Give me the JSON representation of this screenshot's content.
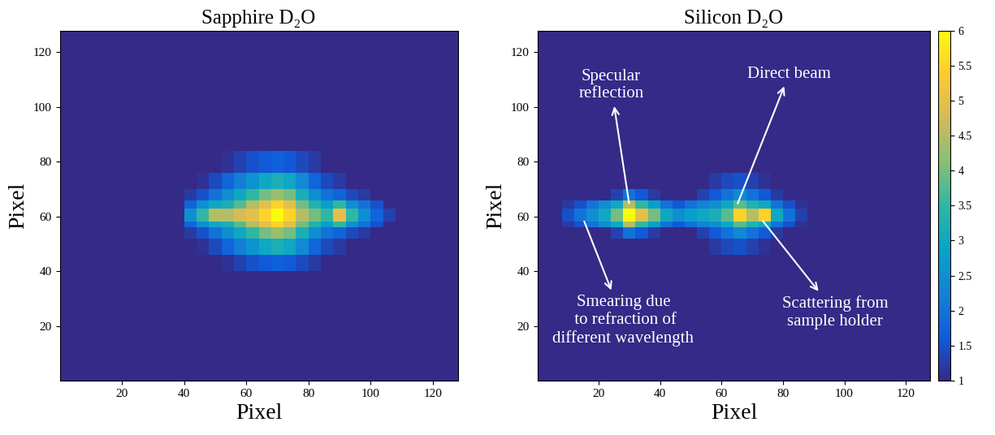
{
  "chart_data": [
    {
      "type": "heatmap",
      "title": "Sapphire D₂O",
      "x_label": "Pixel",
      "y_label": "Pixel",
      "xlim": [
        0,
        128
      ],
      "ylim": [
        0,
        128
      ],
      "xticks": [
        20,
        40,
        60,
        80,
        100,
        120
      ],
      "yticks": [
        20,
        40,
        60,
        80,
        100,
        120
      ],
      "x_edges": [
        0,
        4,
        8,
        12,
        16,
        20,
        24,
        28,
        32,
        36,
        40,
        44,
        48,
        52,
        56,
        60,
        64,
        68,
        72,
        76,
        80,
        84,
        88,
        92,
        96,
        100,
        104,
        108,
        112,
        116,
        120,
        124,
        128
      ],
      "y_edges": [
        0,
        40,
        46,
        52,
        56,
        58,
        63,
        66,
        70,
        76,
        84,
        128
      ],
      "color_range": [
        1,
        6
      ],
      "cells": [
        [
          1,
          1,
          1,
          1,
          1,
          1,
          1,
          1,
          1,
          1,
          1,
          1,
          1,
          1,
          1,
          1,
          1,
          1,
          1,
          1,
          1,
          1,
          1,
          1,
          1,
          1,
          1,
          1,
          1,
          1,
          1,
          1
        ],
        [
          1,
          1,
          1,
          1,
          1,
          1,
          1,
          1,
          1,
          1,
          1,
          1,
          1,
          1.1,
          1.3,
          1.5,
          1.6,
          1.7,
          1.6,
          1.4,
          1.2,
          1,
          1,
          1,
          1,
          1,
          1,
          1,
          1,
          1,
          1,
          1
        ],
        [
          1,
          1,
          1,
          1,
          1,
          1,
          1,
          1,
          1,
          1,
          1,
          1.1,
          1.4,
          1.8,
          2.2,
          2.6,
          3,
          3.2,
          3,
          2.4,
          1.8,
          1.4,
          1.2,
          1,
          1,
          1,
          1,
          1,
          1,
          1,
          1,
          1
        ],
        [
          1,
          1,
          1,
          1,
          1,
          1,
          1,
          1,
          1,
          1,
          1.2,
          1.5,
          2,
          2.5,
          3,
          3.5,
          4,
          4.3,
          4,
          3.2,
          2.5,
          2,
          1.8,
          1.4,
          1.2,
          1,
          1,
          1,
          1,
          1,
          1,
          1
        ],
        [
          1,
          1,
          1,
          1,
          1,
          1,
          1,
          1,
          1,
          1,
          1.8,
          2.5,
          3,
          3.2,
          3.8,
          4.5,
          5,
          5.5,
          5,
          4,
          3.3,
          2.8,
          3.5,
          2.5,
          2,
          1.5,
          1,
          1,
          1,
          1,
          1,
          1
        ],
        [
          1,
          1,
          1,
          1,
          1,
          1,
          1,
          1,
          1,
          1,
          2.5,
          3.5,
          4.5,
          4.5,
          4.8,
          5,
          5.5,
          6,
          5.5,
          4.5,
          4,
          3.5,
          5,
          3.5,
          2.5,
          1.8,
          1.3,
          1,
          1,
          1,
          1,
          1
        ],
        [
          1,
          1,
          1,
          1,
          1,
          1,
          1,
          1,
          1,
          1,
          1.8,
          2.5,
          3,
          3.2,
          3.8,
          4.5,
          5,
          5.5,
          5,
          4,
          3.3,
          2.8,
          3.5,
          2.5,
          2,
          1.5,
          1,
          1,
          1,
          1,
          1,
          1
        ],
        [
          1,
          1,
          1,
          1,
          1,
          1,
          1,
          1,
          1,
          1,
          1.2,
          1.5,
          2,
          2.5,
          3,
          3.5,
          4,
          4.3,
          4,
          3.2,
          2.5,
          2,
          1.8,
          1.4,
          1.2,
          1,
          1,
          1,
          1,
          1,
          1,
          1
        ],
        [
          1,
          1,
          1,
          1,
          1,
          1,
          1,
          1,
          1,
          1,
          1,
          1.1,
          1.4,
          1.8,
          2.2,
          2.6,
          3,
          3.2,
          3,
          2.4,
          1.8,
          1.4,
          1.2,
          1,
          1,
          1,
          1,
          1,
          1,
          1,
          1,
          1
        ],
        [
          1,
          1,
          1,
          1,
          1,
          1,
          1,
          1,
          1,
          1,
          1,
          1,
          1,
          1.1,
          1.3,
          1.5,
          1.6,
          1.7,
          1.6,
          1.4,
          1.2,
          1,
          1,
          1,
          1,
          1,
          1,
          1,
          1,
          1,
          1,
          1
        ],
        [
          1,
          1,
          1,
          1,
          1,
          1,
          1,
          1,
          1,
          1,
          1,
          1,
          1,
          1,
          1,
          1,
          1,
          1,
          1,
          1,
          1,
          1,
          1,
          1,
          1,
          1,
          1,
          1,
          1,
          1,
          1,
          1
        ]
      ]
    },
    {
      "type": "heatmap",
      "title": "Silicon D₂O",
      "x_label": "Pixel",
      "y_label": "Pixel",
      "xlim": [
        0,
        128
      ],
      "ylim": [
        0,
        128
      ],
      "xticks": [
        20,
        40,
        60,
        80,
        100,
        120
      ],
      "yticks": [
        20,
        40,
        60,
        80,
        100,
        120
      ],
      "x_edges": [
        0,
        4,
        8,
        12,
        16,
        20,
        24,
        28,
        32,
        36,
        40,
        44,
        48,
        52,
        56,
        60,
        64,
        68,
        72,
        76,
        80,
        84,
        88,
        92,
        96,
        100,
        104,
        108,
        112,
        116,
        120,
        124,
        128
      ],
      "y_edges": [
        0,
        40,
        46,
        52,
        56,
        58,
        63,
        66,
        70,
        76,
        84,
        128
      ],
      "color_range": [
        1,
        6
      ],
      "colorbar_ticks": [
        1,
        1.5,
        2,
        2.5,
        3,
        3.5,
        4,
        4.5,
        5,
        5.5,
        6
      ],
      "annotations": [
        "Specular\nreflection",
        "Direct beam",
        "Smearing due\n to refraction of\ndifferent wavelength",
        "Scattering from\nsample holder"
      ],
      "cells": [
        [
          1,
          1,
          1,
          1,
          1,
          1,
          1,
          1,
          1,
          1,
          1,
          1,
          1,
          1,
          1,
          1,
          1,
          1,
          1,
          1,
          1,
          1,
          1,
          1,
          1,
          1,
          1,
          1,
          1,
          1,
          1,
          1
        ],
        [
          1,
          1,
          1,
          1,
          1,
          1,
          1,
          1,
          1,
          1,
          1,
          1,
          1,
          1,
          1,
          1,
          1,
          1,
          1,
          1,
          1,
          1,
          1,
          1,
          1,
          1,
          1,
          1,
          1,
          1,
          1,
          1
        ],
        [
          1,
          1,
          1,
          1,
          1,
          1,
          1,
          1,
          1,
          1,
          1,
          1,
          1,
          1,
          1.2,
          1.4,
          1.5,
          1.3,
          1.1,
          1,
          1,
          1,
          1,
          1,
          1,
          1,
          1,
          1,
          1,
          1,
          1,
          1
        ],
        [
          1,
          1,
          1,
          1,
          1,
          1,
          1.3,
          2,
          1.6,
          1.2,
          1,
          1,
          1,
          1.3,
          1.6,
          2,
          2.4,
          2,
          1.6,
          1.2,
          1,
          1,
          1,
          1,
          1,
          1,
          1,
          1,
          1,
          1,
          1,
          1
        ],
        [
          1,
          1,
          1.2,
          1.5,
          2,
          2.5,
          3,
          4.5,
          3.5,
          2.8,
          2,
          1.6,
          2,
          2.3,
          2.5,
          3,
          3.8,
          3.3,
          3,
          2,
          1.5,
          1.1,
          1,
          1,
          1,
          1,
          1,
          1,
          1,
          1,
          1,
          1
        ],
        [
          1,
          1,
          1.5,
          2,
          2.5,
          3,
          4,
          6,
          5,
          4,
          3,
          2.5,
          2.8,
          3,
          3.2,
          3.8,
          5.5,
          4.5,
          5.5,
          3,
          2,
          1.3,
          1,
          1,
          1,
          1,
          1,
          1,
          1,
          1,
          1,
          1
        ],
        [
          1,
          1,
          1.2,
          1.5,
          2,
          2.5,
          3,
          4.5,
          3.5,
          2.8,
          2,
          1.6,
          2,
          2.3,
          2.5,
          3,
          3.8,
          3.3,
          3,
          2,
          1.5,
          1.1,
          1,
          1,
          1,
          1,
          1,
          1,
          1,
          1,
          1,
          1
        ],
        [
          1,
          1,
          1,
          1,
          1,
          1,
          1.3,
          2,
          1.6,
          1.2,
          1,
          1,
          1,
          1.3,
          1.6,
          2,
          2.4,
          2,
          1.6,
          1.2,
          1,
          1,
          1,
          1,
          1,
          1,
          1,
          1,
          1,
          1,
          1,
          1
        ],
        [
          1,
          1,
          1,
          1,
          1,
          1,
          1,
          1,
          1,
          1,
          1,
          1,
          1,
          1,
          1.2,
          1.4,
          1.5,
          1.3,
          1.1,
          1,
          1,
          1,
          1,
          1,
          1,
          1,
          1,
          1,
          1,
          1,
          1,
          1
        ],
        [
          1,
          1,
          1,
          1,
          1,
          1,
          1,
          1,
          1,
          1,
          1,
          1,
          1,
          1,
          1,
          1,
          1,
          1,
          1,
          1,
          1,
          1,
          1,
          1,
          1,
          1,
          1,
          1,
          1,
          1,
          1,
          1
        ],
        [
          1,
          1,
          1,
          1,
          1,
          1,
          1,
          1,
          1,
          1,
          1,
          1,
          1,
          1,
          1,
          1,
          1,
          1,
          1,
          1,
          1,
          1,
          1,
          1,
          1,
          1,
          1,
          1,
          1,
          1,
          1,
          1
        ]
      ]
    }
  ]
}
